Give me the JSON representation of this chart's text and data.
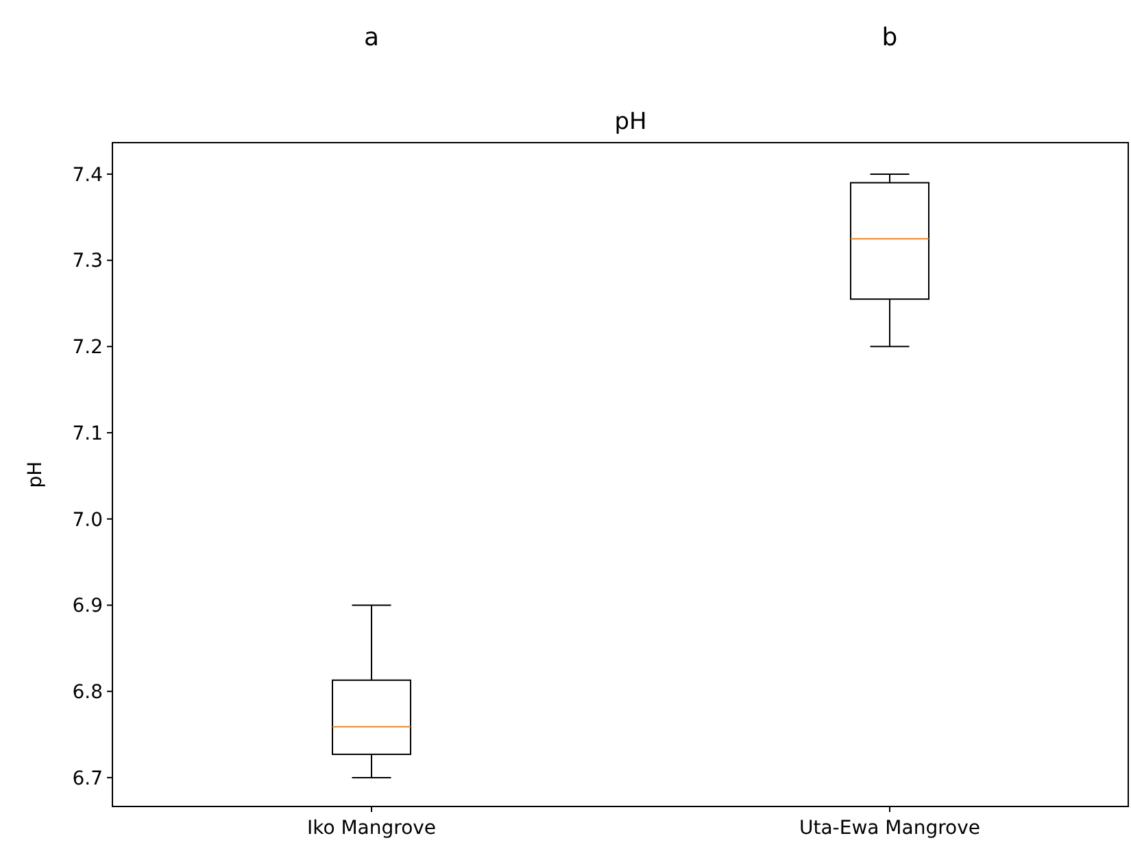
{
  "chart_data": {
    "type": "box",
    "title": "pH",
    "ylabel": "pH",
    "categories": [
      "Iko Mangrove",
      "Uta-Ewa Mangrove"
    ],
    "series": [
      {
        "color": "#000000",
        "boxes": [
          {
            "low": 6.7,
            "q1": 6.727,
            "median": 6.759,
            "q3": 6.813,
            "high": 6.9
          },
          {
            "low": 7.2,
            "q1": 7.255,
            "median": 7.325,
            "q3": 7.39,
            "high": 7.4
          }
        ]
      }
    ],
    "ylim": [
      6.6665,
      7.4365
    ],
    "yticks": [
      {
        "value": 6.7,
        "label": "6.7"
      },
      {
        "value": 6.8,
        "label": "6.8"
      },
      {
        "value": 6.9,
        "label": "6.9"
      },
      {
        "value": 7.0,
        "label": "7.0"
      },
      {
        "value": 7.1,
        "label": "7.1"
      },
      {
        "value": 7.2,
        "label": "7.2"
      },
      {
        "value": 7.3,
        "label": "7.3"
      },
      {
        "value": 7.4,
        "label": "7.4"
      }
    ],
    "annotations": [
      "a",
      "b"
    ],
    "grid": false
  }
}
